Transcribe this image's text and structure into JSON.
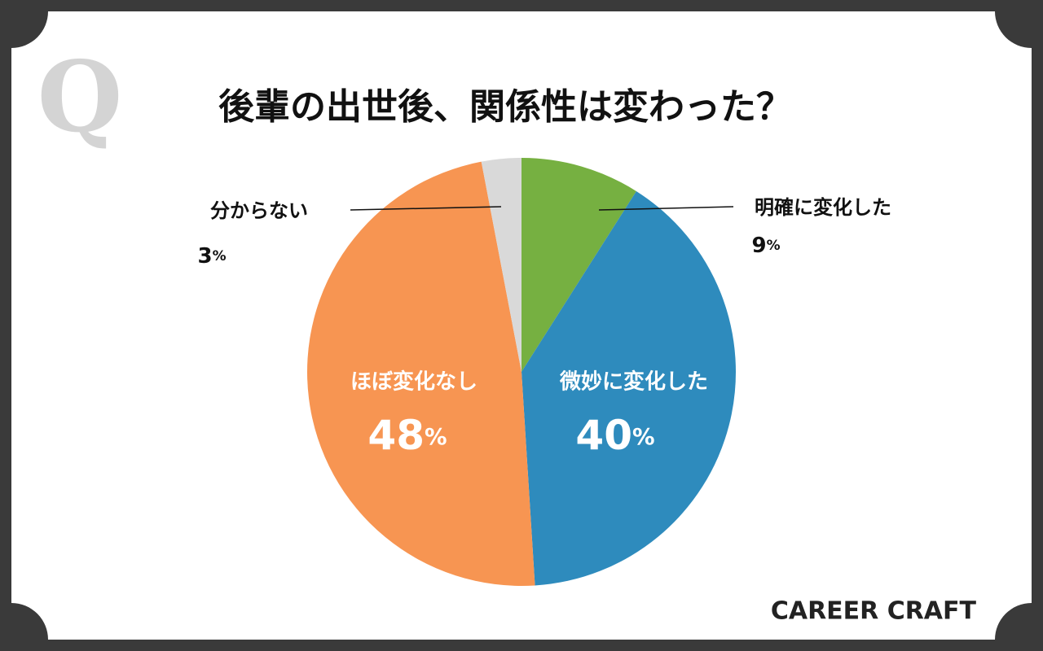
{
  "chart_data": {
    "type": "pie",
    "title": "後輩の出世後、関係性は変わった？",
    "watermark": "Q",
    "brand": "CAREER CRAFT",
    "categories": [
      "明確に変化した",
      "微妙に変化した",
      "ほぼ変化なし",
      "分からない"
    ],
    "values": [
      9,
      40,
      48,
      3
    ],
    "value_labels": [
      "9%",
      "40%",
      "48%",
      "3%"
    ],
    "colors": [
      "#76b041",
      "#2e8bbd",
      "#f79552",
      "#d9d9d9"
    ]
  }
}
